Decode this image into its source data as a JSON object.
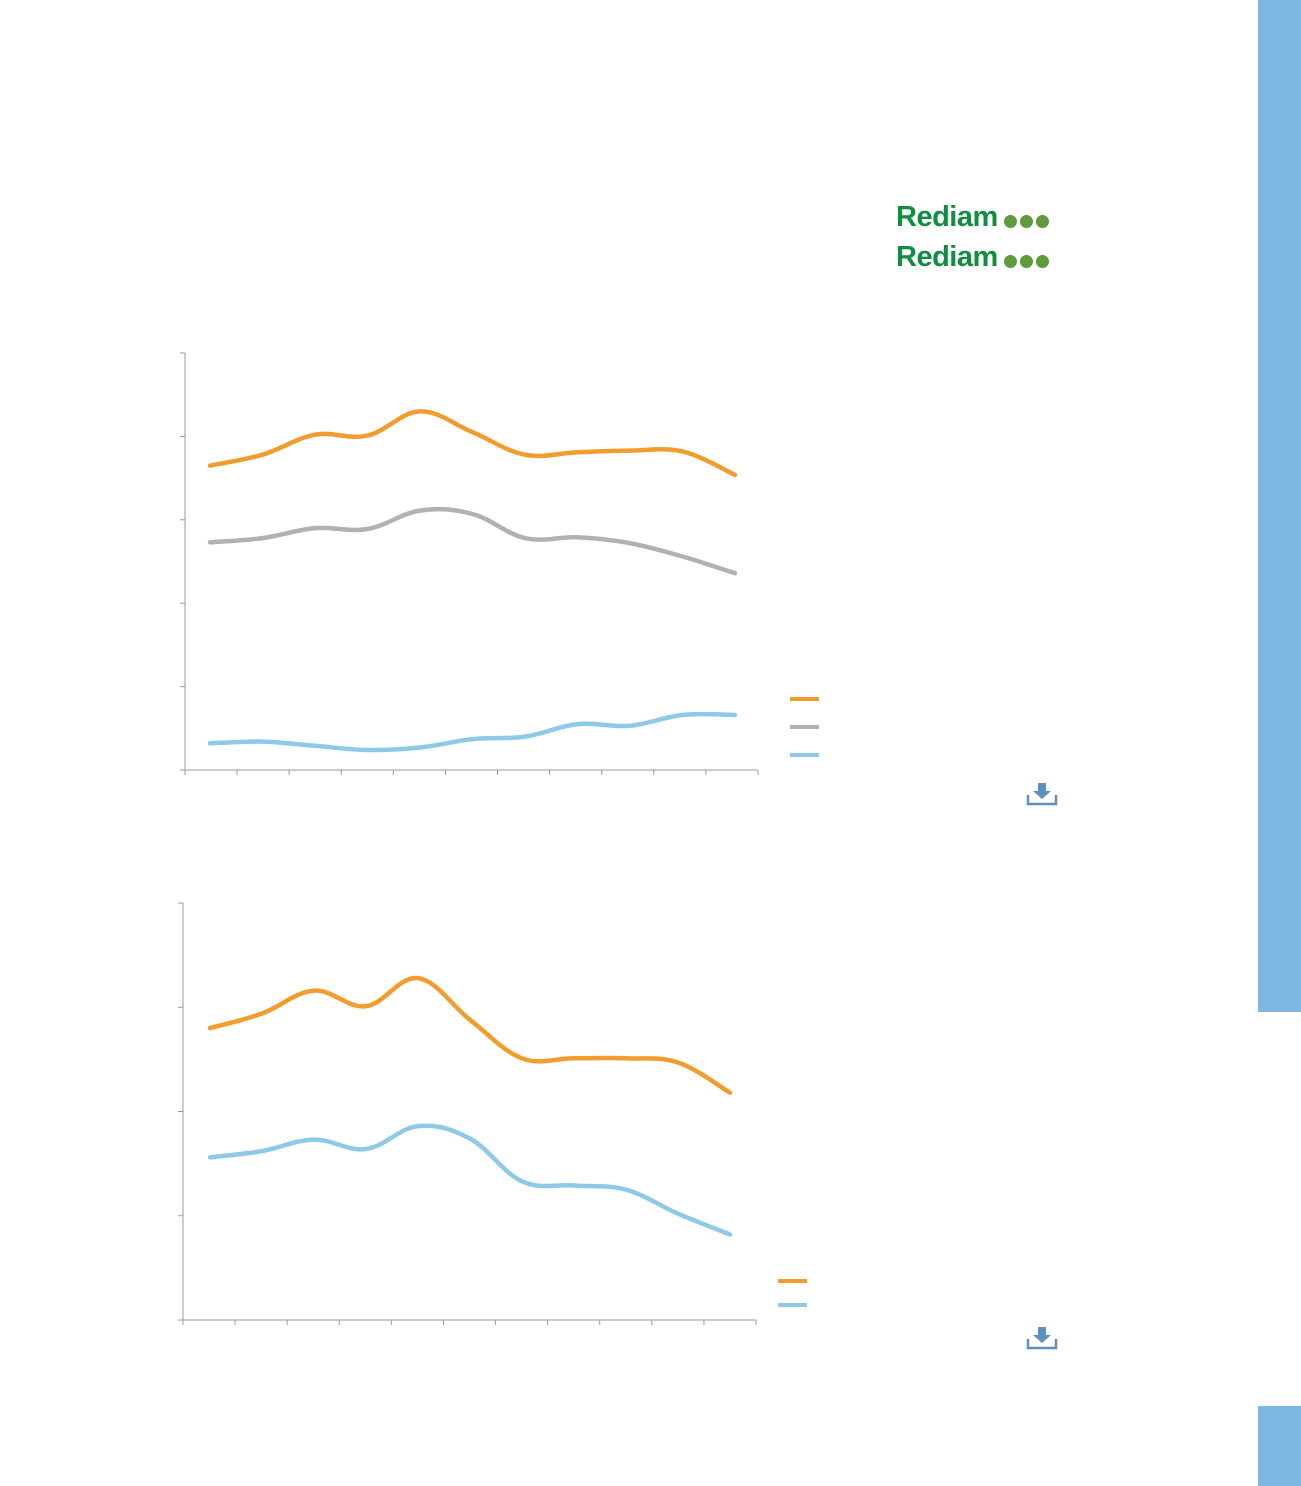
{
  "colors": {
    "sidebar": "#7cb8e0",
    "logo_text": "#0f8e3f",
    "logo_dots": "#5f9a3c",
    "axis": "#9a9a9a",
    "download_icon": "#5b90c4"
  },
  "logos": [
    {
      "text": "Rediam"
    },
    {
      "text": "Rediam"
    }
  ],
  "chart_data": [
    {
      "type": "line",
      "x": [
        1,
        2,
        3,
        4,
        5,
        6,
        7,
        8,
        9,
        10,
        11
      ],
      "ylim": [
        0,
        5
      ],
      "y_ticks": 5,
      "x_ticks": 11,
      "grid": false,
      "legend_position": "bottom-right",
      "series": [
        {
          "color": "#f39c2e",
          "values": [
            3.65,
            3.78,
            4.02,
            4.01,
            4.3,
            4.05,
            3.78,
            3.81,
            3.83,
            3.82,
            3.54
          ]
        },
        {
          "color": "#b1b1b1",
          "values": [
            2.73,
            2.78,
            2.9,
            2.89,
            3.11,
            3.07,
            2.78,
            2.79,
            2.72,
            2.56,
            2.36
          ]
        },
        {
          "color": "#8fc9e8",
          "values": [
            0.32,
            0.34,
            0.29,
            0.24,
            0.27,
            0.37,
            0.4,
            0.55,
            0.53,
            0.66,
            0.66
          ]
        }
      ]
    },
    {
      "type": "line",
      "x": [
        1,
        2,
        3,
        4,
        5,
        6,
        7,
        8,
        9,
        10,
        11
      ],
      "ylim": [
        0,
        4
      ],
      "y_ticks": 4,
      "x_ticks": 11,
      "grid": false,
      "legend_position": "bottom-right",
      "series": [
        {
          "color": "#f39c2e",
          "values": [
            2.8,
            2.94,
            3.16,
            3.01,
            3.28,
            2.88,
            2.51,
            2.51,
            2.51,
            2.47,
            2.18
          ]
        },
        {
          "color": "#8fc9e8",
          "values": [
            1.56,
            1.62,
            1.73,
            1.64,
            1.86,
            1.74,
            1.33,
            1.29,
            1.25,
            1.02,
            0.82
          ]
        }
      ]
    }
  ]
}
